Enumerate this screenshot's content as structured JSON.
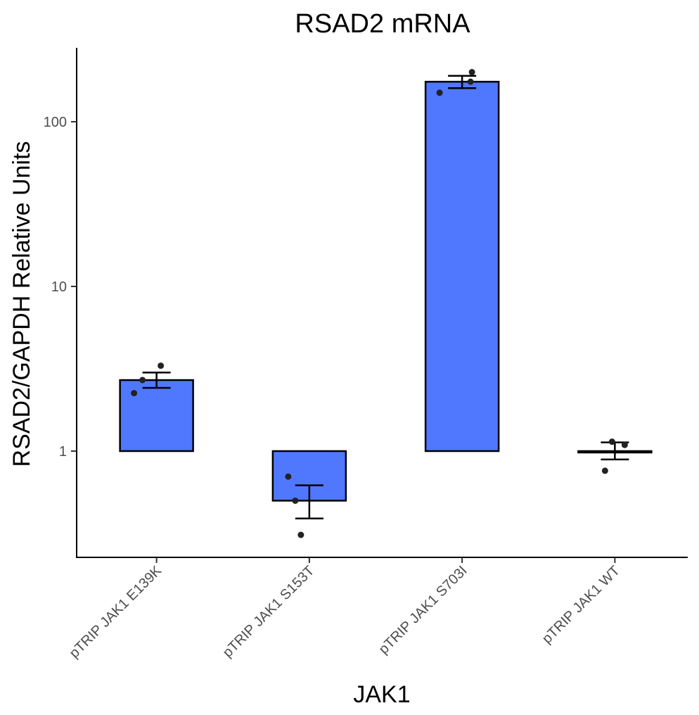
{
  "chart_data": {
    "type": "bar",
    "title": "RSAD2 mRNA",
    "xlabel": "JAK1",
    "ylabel": "RSAD2/GAPDH Relative Units",
    "yscale": "log10",
    "ylim": [
      0.24,
      260
    ],
    "yticks": [
      1,
      10,
      100
    ],
    "ytick_labels": [
      "1",
      "10",
      "100"
    ],
    "bar_baseline": 1,
    "bar_color": "#5078FF",
    "grid": false,
    "legend": "none",
    "categories": [
      "pTRIP JAK1 E139K",
      "pTRIP JAK1 S153T",
      "pTRIP JAK1 S703I",
      "pTRIP JAK1 WT"
    ],
    "values": [
      2.7,
      0.5,
      175,
      1.0
    ],
    "error_low": [
      2.42,
      0.39,
      160,
      0.89
    ],
    "error_high": [
      3.0,
      0.62,
      190,
      1.13
    ],
    "points": [
      [
        2.25,
        2.7,
        3.3
      ],
      [
        0.7,
        0.5,
        0.31
      ],
      [
        150,
        175,
        200
      ],
      [
        0.76,
        1.14,
        1.09
      ]
    ]
  }
}
